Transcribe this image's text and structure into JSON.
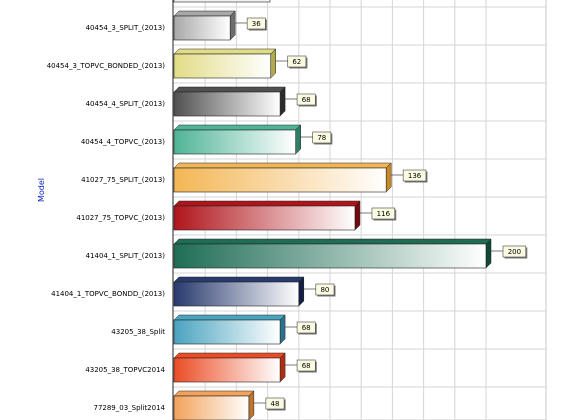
{
  "chart_data": {
    "type": "bar",
    "orientation": "horizontal",
    "ylabel": "Model",
    "xlim": [
      0,
      210
    ],
    "grid": true,
    "categories": [
      "40454_3_SPLIT_(2013)",
      "40454_3_TOPVC_BONDED_(2013)",
      "40454_4_SPLIT_(2013)",
      "40454_4_TOPVC_(2013)",
      "41027_75_SPLIT_(2013)",
      "41027_75_TOPVC_(2013)",
      "41404_1_SPLIT_(2013)",
      "41404_1_TOPVC_BONDD_(2013)",
      "43205_38_Split",
      "43205_38_TOPVC2014",
      "77289_03_Split2014"
    ],
    "values": [
      36,
      62,
      68,
      78,
      136,
      116,
      200,
      80,
      68,
      68,
      48
    ],
    "value_labels": [
      "36",
      "62",
      "68",
      "78",
      "136",
      "116",
      "200",
      "80",
      "68",
      "68",
      "48"
    ],
    "colors": [
      {
        "main": "#a8a8a8",
        "dark": "#6e6e6e"
      },
      {
        "main": "#e2dc86",
        "dark": "#b1aa4e"
      },
      {
        "main": "#505050",
        "dark": "#2b2b2b"
      },
      {
        "main": "#4fb497",
        "dark": "#2d8067"
      },
      {
        "main": "#f3b655",
        "dark": "#c98a26"
      },
      {
        "main": "#b0151b",
        "dark": "#77080c"
      },
      {
        "main": "#1f6d55",
        "dark": "#0f4a38"
      },
      {
        "main": "#283a6e",
        "dark": "#141f45"
      },
      {
        "main": "#4aa3bf",
        "dark": "#2a7390"
      },
      {
        "main": "#eb4c25",
        "dark": "#b22e10"
      },
      {
        "main": "#f2a25a",
        "dark": "#c2742c"
      }
    ],
    "value_label_fill": "#fbfbe2"
  }
}
